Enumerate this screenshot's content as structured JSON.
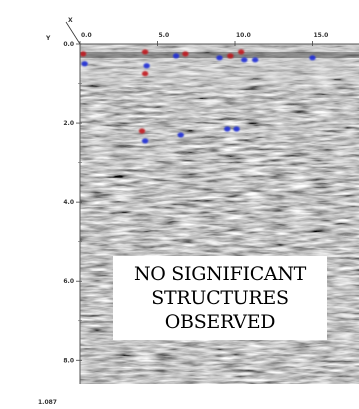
{
  "chart_data": {
    "type": "heatmap",
    "title": "",
    "xlabel": "",
    "ylabel": "",
    "x_axis_corner_label": "X",
    "y_axis_corner_label": "Y",
    "x_ticks": [
      "0.0",
      "5.0",
      "10.0",
      "15.0"
    ],
    "y_ticks": [
      "0.0",
      "2.0",
      "4.0",
      "6.0",
      "8.0"
    ],
    "footer_label": "1.087",
    "xlim": [
      0,
      18
    ],
    "ylim": [
      0,
      8.6
    ],
    "annotation": [
      "NO SIGNIFICANT",
      "STRUCTURES",
      "OBSERVED"
    ],
    "anomalies": [
      {
        "x": 0.2,
        "y": 0.25,
        "color": "red"
      },
      {
        "x": 0.3,
        "y": 0.5,
        "color": "blue"
      },
      {
        "x": 4.2,
        "y": 0.2,
        "color": "red"
      },
      {
        "x": 4.3,
        "y": 0.55,
        "color": "blue"
      },
      {
        "x": 4.2,
        "y": 0.75,
        "color": "red"
      },
      {
        "x": 6.2,
        "y": 0.3,
        "color": "blue"
      },
      {
        "x": 6.8,
        "y": 0.25,
        "color": "red"
      },
      {
        "x": 9.0,
        "y": 0.35,
        "color": "blue"
      },
      {
        "x": 9.7,
        "y": 0.3,
        "color": "red"
      },
      {
        "x": 10.4,
        "y": 0.2,
        "color": "red"
      },
      {
        "x": 10.6,
        "y": 0.4,
        "color": "blue"
      },
      {
        "x": 11.3,
        "y": 0.4,
        "color": "blue"
      },
      {
        "x": 15.0,
        "y": 0.35,
        "color": "blue"
      },
      {
        "x": 4.0,
        "y": 2.2,
        "color": "red"
      },
      {
        "x": 4.2,
        "y": 2.45,
        "color": "blue"
      },
      {
        "x": 6.5,
        "y": 2.3,
        "color": "blue"
      },
      {
        "x": 9.5,
        "y": 2.15,
        "color": "blue"
      },
      {
        "x": 10.1,
        "y": 2.15,
        "color": "blue"
      }
    ],
    "colors": {
      "positive": "#c0141c",
      "negative": "#1c2fd6",
      "background": "#8c8c8c"
    }
  }
}
